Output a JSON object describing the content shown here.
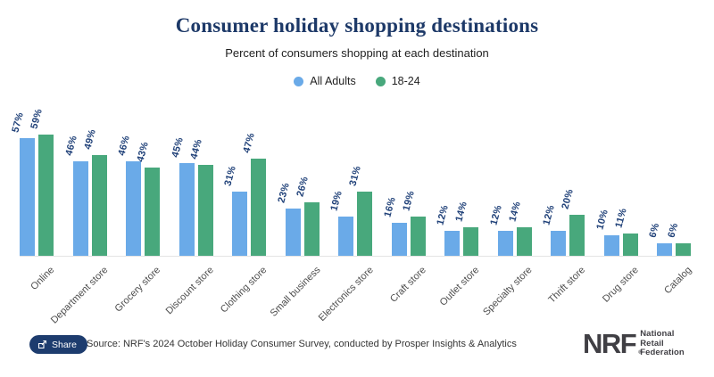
{
  "header": {
    "title": "Consumer holiday shopping destinations",
    "subtitle": "Percent of consumers shopping at each destination"
  },
  "legend": [
    {
      "label": "All Adults",
      "color": "#6aaae8"
    },
    {
      "label": "18-24",
      "color": "#48a87c"
    }
  ],
  "chart_data": {
    "type": "bar",
    "title": "Consumer holiday shopping destinations",
    "subtitle": "Percent of consumers shopping at each destination",
    "xlabel": "",
    "ylabel": "",
    "ylim": [
      0,
      62
    ],
    "grid": false,
    "legend_position": "top",
    "value_suffix": "%",
    "categories": [
      "Online",
      "Department store",
      "Grocery store",
      "Discount store",
      "Clothing store",
      "Small business",
      "Electronics store",
      "Craft store",
      "Outlet store",
      "Specialty store",
      "Thrift store",
      "Drug store",
      "Catalog"
    ],
    "series": [
      {
        "name": "All Adults",
        "color": "#6aaae8",
        "values": [
          57,
          46,
          46,
          45,
          31,
          23,
          19,
          16,
          12,
          12,
          12,
          10,
          6
        ]
      },
      {
        "name": "18-24",
        "color": "#48a87c",
        "values": [
          59,
          49,
          43,
          44,
          47,
          26,
          31,
          19,
          14,
          14,
          20,
          11,
          6
        ]
      }
    ]
  },
  "footer": {
    "share_label": "Share",
    "source": "Source: NRF's 2024 October Holiday Consumer Survey, conducted by Prosper Insights & Analytics",
    "logo": {
      "acronym": "NRF",
      "reg": "®",
      "lines": [
        "National",
        "Retail",
        "Federation"
      ]
    }
  },
  "colors": {
    "title": "#1d3968",
    "value_label": "#1f4078",
    "axis_line": "#e4e4e4",
    "share_button": "#1d3c6e",
    "logo": "#403f44"
  }
}
